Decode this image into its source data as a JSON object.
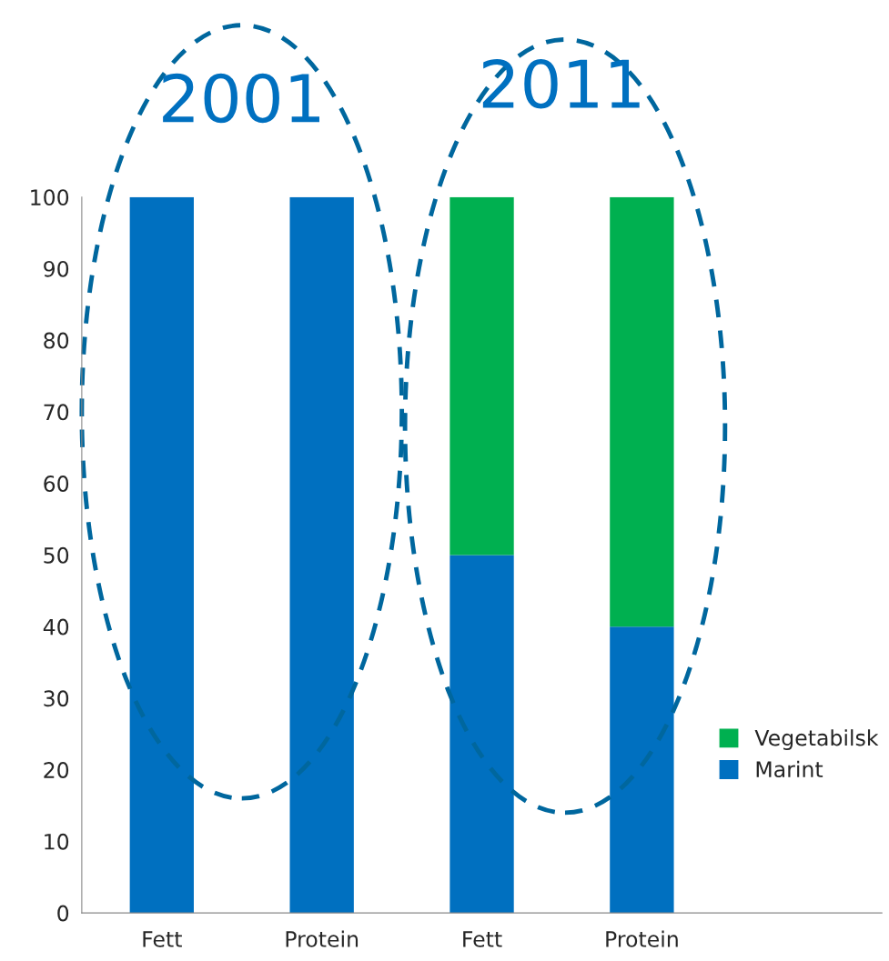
{
  "chart_data": {
    "type": "bar",
    "stacked": true,
    "categories": [
      "Fett",
      "Protein",
      "Fett",
      "Protein",
      null
    ],
    "series": [
      {
        "name": "Marint",
        "color": "#0070c0",
        "values": [
          100,
          100,
          50,
          40,
          null
        ]
      },
      {
        "name": "Vegetabilsk",
        "color": "#00b050",
        "values": [
          0,
          0,
          50,
          60,
          null
        ]
      }
    ],
    "ylim": [
      0,
      100
    ],
    "yticks": [
      0,
      10,
      20,
      30,
      40,
      50,
      60,
      70,
      80,
      90,
      100
    ],
    "annotations": [
      "2001",
      "2011"
    ],
    "legend": "right",
    "grid": false
  }
}
